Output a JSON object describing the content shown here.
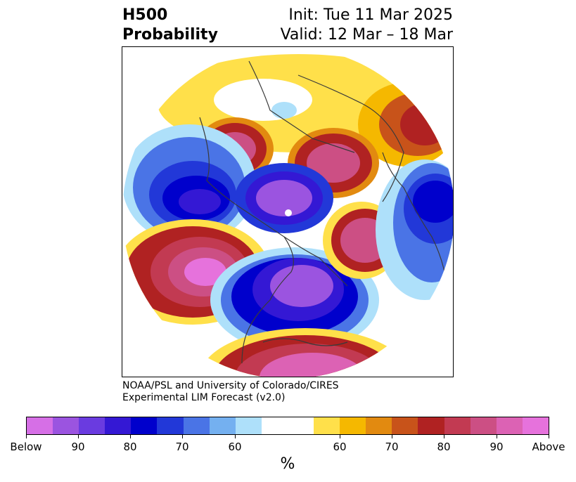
{
  "title": {
    "left_line1": "H500",
    "left_line2": "Probability",
    "right_line1": "Init: Tue 11 Mar 2025",
    "right_line2": "Valid: 12 Mar – 18 Mar"
  },
  "credit": {
    "line1": "NOAA/PSL and University of Colorado/CIRES",
    "line2": "Experimental LIM Forecast (v2.0)"
  },
  "colorbar": {
    "unit": "%",
    "colors": [
      "#d66fe6",
      "#9b54e0",
      "#6a3be0",
      "#3418d4",
      "#0000cc",
      "#2238d8",
      "#4a74e6",
      "#74b0f0",
      "#aee0fa",
      "#ffffff",
      "#ffffff",
      "#ffe04a",
      "#f5b800",
      "#e28a10",
      "#c8531a",
      "#b02222",
      "#c23a52",
      "#cc4f84",
      "#dc62b4",
      "#e672dc"
    ],
    "tick_labels": [
      "Below",
      "90",
      "80",
      "70",
      "60",
      "60",
      "70",
      "80",
      "90",
      "Above"
    ]
  },
  "map": {
    "projection": "north-polar-stereographic",
    "field": "500 hPa height anomaly probability",
    "features": [
      "coastlines",
      "country-borders",
      "state-borders"
    ]
  }
}
